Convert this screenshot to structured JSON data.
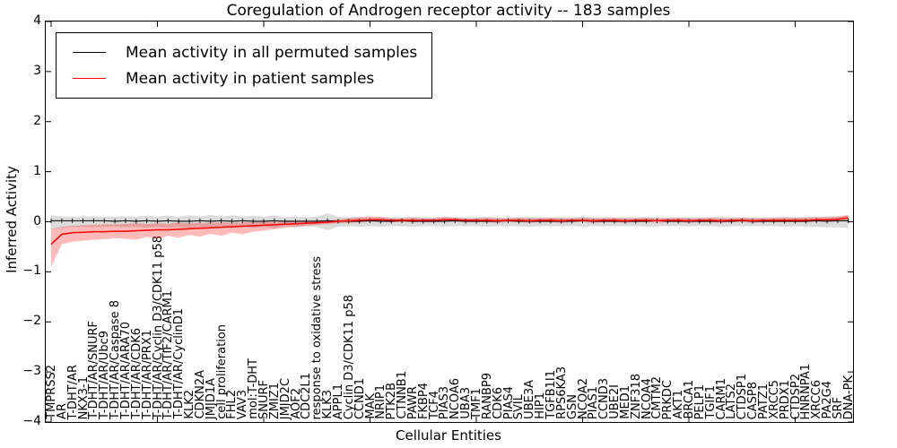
{
  "chart_data": {
    "type": "line",
    "title": "Coregulation of Androgen receptor activity -- 183 samples",
    "xlabel": "Cellular Entities",
    "ylabel": "Inferred Activity",
    "ylim": [
      -4,
      4
    ],
    "yticks": [
      4,
      3,
      2,
      1,
      0,
      -1,
      -2,
      -3,
      -4
    ],
    "x_major_tick_interval": 10,
    "grid": false,
    "legend_position": "upper left",
    "categories": [
      "TMPRSS2",
      "AR",
      "T-DHT/AR",
      "NKX3-1",
      "T-DHT/AR/SNURF",
      "T-DHT/AR/Ubc9",
      "T-DHT/AR/Caspase 8",
      "T-DHT/AR/ARA70",
      "T-DHT/AR/CDK6",
      "T-DHT/AR/PRX1",
      "T-DHT/AR/Cyclin D3/CDK11 p58",
      "T-DHT/AR/TIF2/CARM1",
      "T-DHT/AR/CyclinD1",
      "KLK2",
      "CDKN2A",
      "JMJD1A",
      "cell proliferation",
      "FHL2",
      "VAV3",
      "mol:T-DHT",
      "SNURF",
      "ZMIZ1",
      "JMJD2C",
      "AOF2",
      "CDC2L1",
      "response to oxidative stress",
      "KLK3",
      "APPL1",
      "Cyclin D3/CDK11 p58",
      "CCND1",
      "MAK",
      "NRIP1",
      "PTK2B",
      "CTNNB1",
      "PAWR",
      "FKBP4",
      "TCF4",
      "PIAS3",
      "NCOA6",
      "UBA3",
      "TMF1",
      "RANBP9",
      "CDK6",
      "PIAS4",
      "SVIL",
      "UBE3A",
      "HIP1",
      "TGFB1I1",
      "RPS6KA3",
      "GSN",
      "NCOA2",
      "PIAS1",
      "CCND3",
      "UBE2I",
      "MED1",
      "ZNF318",
      "NCOA4",
      "CMTM2",
      "PRKDC",
      "AKT1",
      "BRCA1",
      "PELP1",
      "TGIF1",
      "CARM1",
      "LATS2",
      "CTDSP1",
      "CASP8",
      "PATZ1",
      "XRCC5",
      "PRDX1",
      "CTDSP2",
      "HNRNPA1",
      "XRCC6",
      "PA2G4",
      "SRF",
      "DNA-PK"
    ],
    "series": [
      {
        "name": "Mean activity in all permuted samples",
        "color": "#000000",
        "marker": "tick",
        "band_color": "#909090",
        "band_opacity": 0.32,
        "values": [
          0.02,
          0.02,
          0.02,
          0.02,
          0.02,
          0.02,
          0.01,
          0.02,
          0.01,
          0.02,
          0.01,
          0.02,
          0.01,
          0.01,
          0.02,
          0.01,
          0.02,
          0.01,
          0.02,
          0.01,
          0.01,
          0.02,
          0.01,
          0.01,
          0.01,
          0.01,
          0.02,
          0.01,
          0.01,
          0.01,
          0.02,
          0.01,
          0.01,
          0.02,
          0.01,
          0.01,
          0.01,
          0.01,
          0.02,
          0.01,
          0.01,
          0.01,
          0.01,
          0.02,
          0.01,
          0.01,
          0.01,
          0.01,
          0.01,
          0.01,
          0.02,
          0.01,
          0.01,
          0.01,
          0.01,
          0.01,
          0.01,
          0.02,
          0.01,
          0.01,
          0.01,
          0.01,
          0.01,
          0.01,
          0.01,
          0.02,
          0.01,
          0.01,
          0.01,
          0.01,
          0.01,
          0.01,
          0.02,
          0.01,
          0.02,
          0.02
        ],
        "band_upper": [
          0.13,
          0.11,
          0.1,
          0.1,
          0.11,
          0.1,
          0.1,
          0.11,
          0.1,
          0.12,
          0.1,
          0.12,
          0.1,
          0.13,
          0.1,
          0.14,
          0.1,
          0.13,
          0.1,
          0.12,
          0.1,
          0.13,
          0.09,
          0.11,
          0.09,
          0.1,
          0.17,
          0.1,
          0.09,
          0.1,
          0.09,
          0.1,
          0.09,
          0.09,
          0.1,
          0.09,
          0.09,
          0.1,
          0.09,
          0.09,
          0.09,
          0.1,
          0.09,
          0.09,
          0.09,
          0.1,
          0.09,
          0.09,
          0.09,
          0.09,
          0.1,
          0.09,
          0.09,
          0.09,
          0.09,
          0.09,
          0.1,
          0.09,
          0.09,
          0.09,
          0.09,
          0.09,
          0.09,
          0.1,
          0.09,
          0.09,
          0.09,
          0.09,
          0.09,
          0.1,
          0.09,
          0.1,
          0.1,
          0.11,
          0.11,
          0.12
        ],
        "band_lower": [
          -0.16,
          -0.12,
          -0.1,
          -0.1,
          -0.11,
          -0.1,
          -0.1,
          -0.11,
          -0.1,
          -0.12,
          -0.1,
          -0.12,
          -0.1,
          -0.13,
          -0.1,
          -0.14,
          -0.1,
          -0.13,
          -0.1,
          -0.12,
          -0.1,
          -0.13,
          -0.09,
          -0.11,
          -0.09,
          -0.1,
          -0.17,
          -0.1,
          -0.09,
          -0.1,
          -0.09,
          -0.1,
          -0.09,
          -0.09,
          -0.1,
          -0.09,
          -0.09,
          -0.1,
          -0.09,
          -0.09,
          -0.09,
          -0.1,
          -0.09,
          -0.09,
          -0.09,
          -0.1,
          -0.09,
          -0.09,
          -0.09,
          -0.09,
          -0.1,
          -0.09,
          -0.09,
          -0.09,
          -0.09,
          -0.09,
          -0.1,
          -0.09,
          -0.09,
          -0.09,
          -0.09,
          -0.09,
          -0.09,
          -0.1,
          -0.09,
          -0.09,
          -0.09,
          -0.09,
          -0.09,
          -0.1,
          -0.09,
          -0.1,
          -0.1,
          -0.11,
          -0.11,
          -0.12
        ]
      },
      {
        "name": "Mean activity in patient samples",
        "color": "#ff0000",
        "marker": "none",
        "band_color": "#ff0000",
        "band_opacity": 0.27,
        "values": [
          -0.45,
          -0.25,
          -0.22,
          -0.21,
          -0.2,
          -0.2,
          -0.19,
          -0.19,
          -0.18,
          -0.17,
          -0.16,
          -0.16,
          -0.15,
          -0.14,
          -0.13,
          -0.12,
          -0.11,
          -0.1,
          -0.09,
          -0.08,
          -0.07,
          -0.06,
          -0.05,
          -0.04,
          -0.03,
          -0.02,
          -0.01,
          0.01,
          0.02,
          0.03,
          0.04,
          0.04,
          0.03,
          0.03,
          0.03,
          0.03,
          0.03,
          0.04,
          0.04,
          0.03,
          0.03,
          0.03,
          0.02,
          0.03,
          0.03,
          0.02,
          0.03,
          0.03,
          0.02,
          0.03,
          0.03,
          0.02,
          0.03,
          0.03,
          0.02,
          0.03,
          0.03,
          0.02,
          0.03,
          0.03,
          0.02,
          0.03,
          0.03,
          0.02,
          0.03,
          0.03,
          0.02,
          0.03,
          0.03,
          0.03,
          0.03,
          0.03,
          0.04,
          0.04,
          0.05,
          0.08
        ],
        "band_upper": [
          -0.15,
          -0.1,
          -0.08,
          -0.07,
          -0.06,
          -0.05,
          -0.05,
          -0.04,
          -0.03,
          -0.04,
          -0.03,
          -0.04,
          -0.02,
          -0.03,
          -0.02,
          -0.02,
          -0.01,
          -0.02,
          -0.01,
          -0.01,
          0.0,
          0.0,
          0.01,
          0.01,
          0.01,
          0.02,
          0.03,
          0.05,
          0.07,
          0.09,
          0.1,
          0.09,
          0.07,
          0.07,
          0.08,
          0.07,
          0.07,
          0.09,
          0.08,
          0.07,
          0.07,
          0.08,
          0.07,
          0.07,
          0.08,
          0.07,
          0.07,
          0.08,
          0.07,
          0.07,
          0.08,
          0.07,
          0.07,
          0.08,
          0.07,
          0.07,
          0.08,
          0.07,
          0.07,
          0.08,
          0.07,
          0.07,
          0.08,
          0.07,
          0.07,
          0.08,
          0.07,
          0.07,
          0.08,
          0.08,
          0.08,
          0.08,
          0.09,
          0.09,
          0.1,
          0.14
        ],
        "band_lower": [
          -0.9,
          -0.45,
          -0.4,
          -0.38,
          -0.36,
          -0.35,
          -0.33,
          -0.34,
          -0.36,
          -0.3,
          -0.34,
          -0.28,
          -0.32,
          -0.26,
          -0.3,
          -0.24,
          -0.28,
          -0.22,
          -0.25,
          -0.2,
          -0.18,
          -0.15,
          -0.12,
          -0.1,
          -0.08,
          -0.06,
          -0.05,
          -0.03,
          -0.02,
          -0.01,
          0.0,
          0.0,
          -0.01,
          -0.01,
          -0.01,
          -0.01,
          -0.01,
          0.0,
          0.0,
          -0.01,
          -0.01,
          -0.01,
          -0.02,
          -0.01,
          -0.01,
          -0.02,
          -0.01,
          -0.01,
          -0.02,
          -0.01,
          -0.01,
          -0.02,
          -0.01,
          -0.01,
          -0.02,
          -0.01,
          -0.01,
          -0.02,
          -0.01,
          -0.01,
          -0.02,
          -0.01,
          -0.01,
          -0.02,
          -0.01,
          -0.01,
          -0.02,
          -0.01,
          -0.01,
          -0.01,
          -0.01,
          -0.01,
          0.0,
          0.0,
          0.01,
          0.02
        ]
      }
    ]
  }
}
